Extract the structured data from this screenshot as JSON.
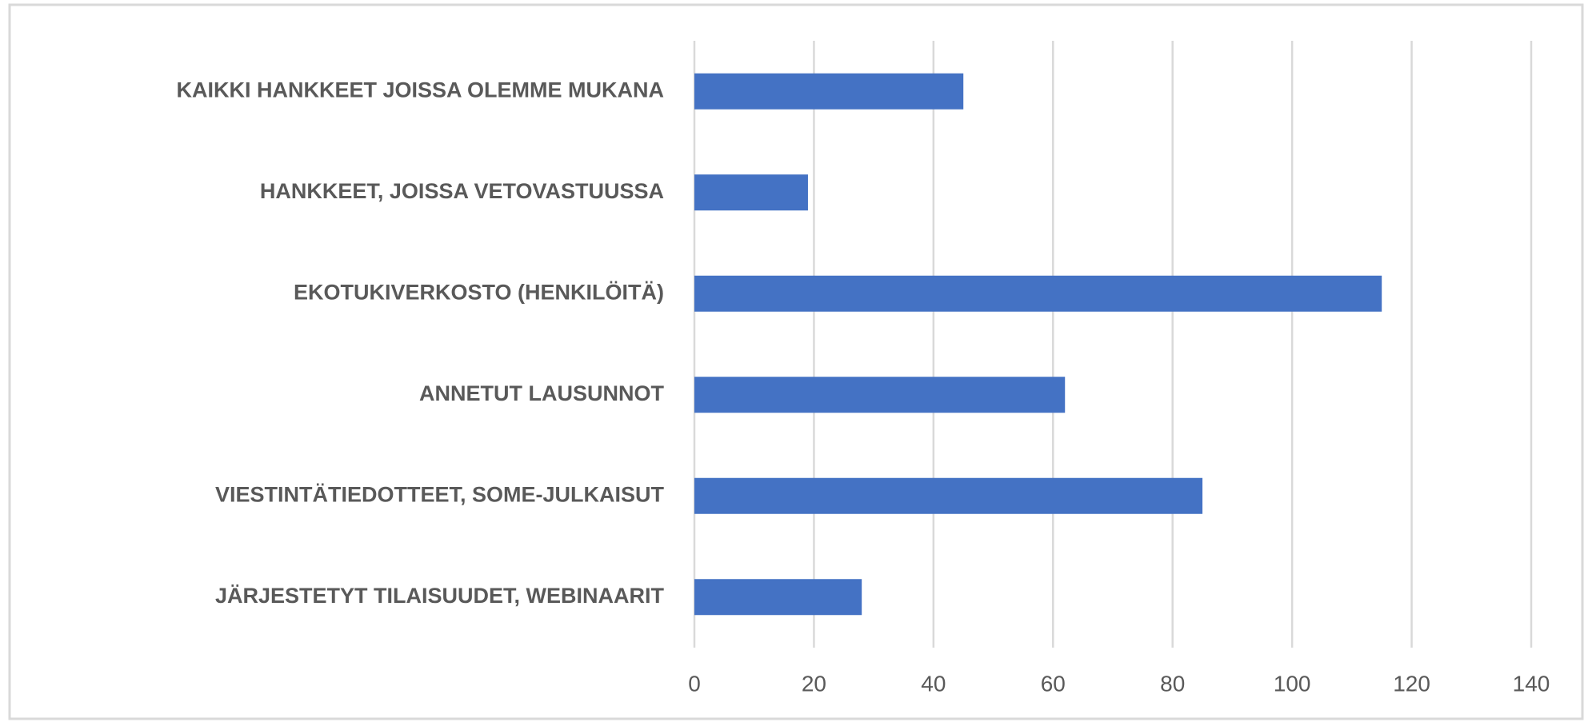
{
  "chart_data": {
    "type": "hbar",
    "categories": [
      "KAIKKI HANKKEET JOISSA OLEMME MUKANA",
      "HANKKEET, JOISSA VETOVASTUUSSA",
      "EKOTUKIVERKOSTO (HENKILÖITÄ)",
      "ANNETUT LAUSUNNOT",
      "VIESTINTÄTIEDOTTEET, SOME-JULKAISUT",
      "JÄRJESTETYT TILAISUUDET, WEBINAARIT"
    ],
    "values": [
      45,
      19,
      115,
      62,
      85,
      28
    ],
    "color": "#4472c4",
    "xlim": [
      0,
      140
    ],
    "xticks": [
      0,
      20,
      40,
      60,
      80,
      100,
      120,
      140
    ],
    "grid": true
  }
}
